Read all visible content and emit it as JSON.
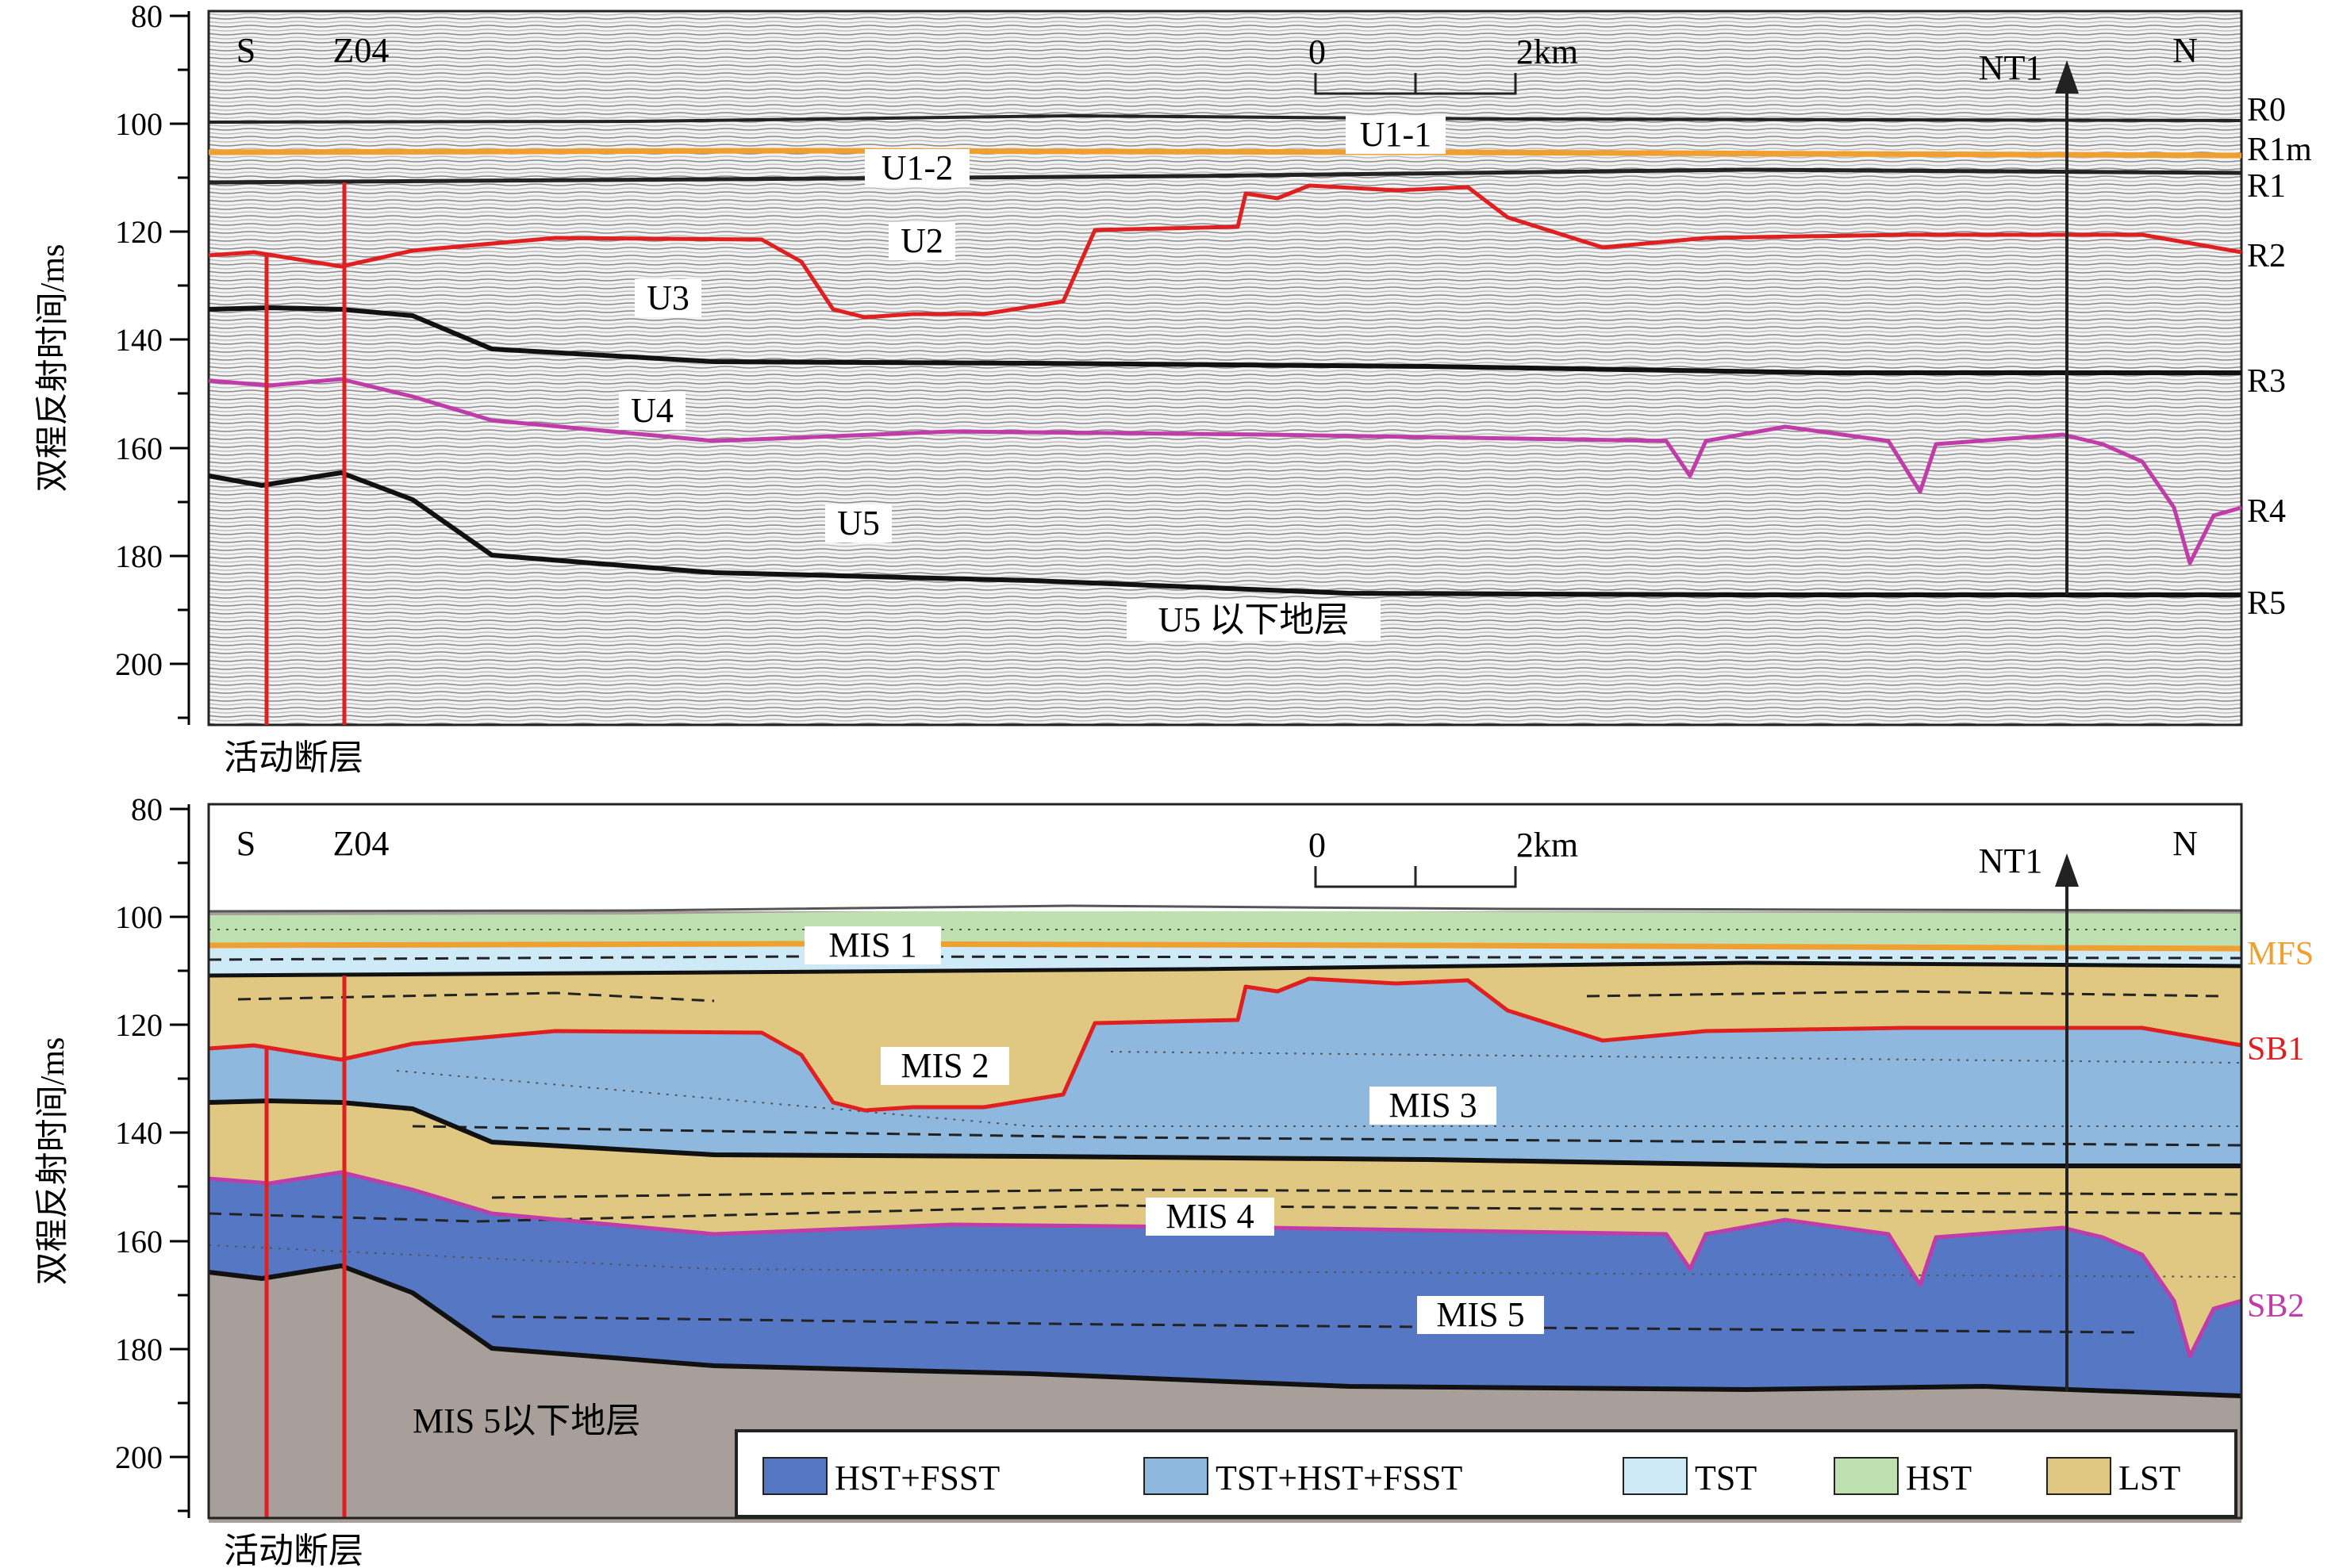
{
  "panel_top": {
    "y_axis": {
      "label": "双程反射时间/ms",
      "ticks": [
        "80",
        "100",
        "120",
        "140",
        "160",
        "180",
        "200"
      ]
    },
    "site_labels": {
      "south": "S",
      "borehole": "Z04",
      "north": "N",
      "profile": "NT1"
    },
    "scale_bar": {
      "zero": "0",
      "end": "2km"
    },
    "unit_labels": {
      "u1_1": "U1-1",
      "u1_2": "U1-2",
      "u2": "U2",
      "u3": "U3",
      "u4": "U4",
      "u5": "U5",
      "below_u5": "U5 以下地层"
    },
    "reflector_labels": {
      "r0": "R0",
      "r1m": "R1m",
      "r1": "R1",
      "r2": "R2",
      "r3": "R3",
      "r4": "R4",
      "r5": "R5"
    },
    "fault_label": "活动断层"
  },
  "panel_bottom": {
    "y_axis": {
      "label": "双程反射时间/ms",
      "ticks": [
        "80",
        "100",
        "120",
        "140",
        "160",
        "180",
        "200"
      ]
    },
    "site_labels": {
      "south": "S",
      "borehole": "Z04",
      "north": "N",
      "profile": "NT1"
    },
    "scale_bar": {
      "zero": "0",
      "end": "2km"
    },
    "stage_labels": {
      "mis1": "MIS 1",
      "mis2": "MIS 2",
      "mis3": "MIS 3",
      "mis4": "MIS 4",
      "mis5": "MIS 5",
      "below_mis5": "MIS 5以下地层"
    },
    "surface_labels": {
      "mfs": "MFS",
      "sb1": "SB1",
      "sb2": "SB2"
    },
    "legend": [
      {
        "label": "HST+FSST",
        "color": "#5577c4"
      },
      {
        "label": "TST+HST+FSST",
        "color": "#8fb8de"
      },
      {
        "label": "TST",
        "color": "#cdeaf6"
      },
      {
        "label": "HST",
        "color": "#bfe0b0"
      },
      {
        "label": "LST",
        "color": "#e0c882"
      }
    ],
    "fault_label": "活动断层"
  },
  "colors": {
    "sb1_red": "#e02020",
    "sb2_magenta": "#c03ca8",
    "mfs_orange": "#f0a030",
    "fault_red": "#e02020",
    "basement": "#a89f9b"
  }
}
